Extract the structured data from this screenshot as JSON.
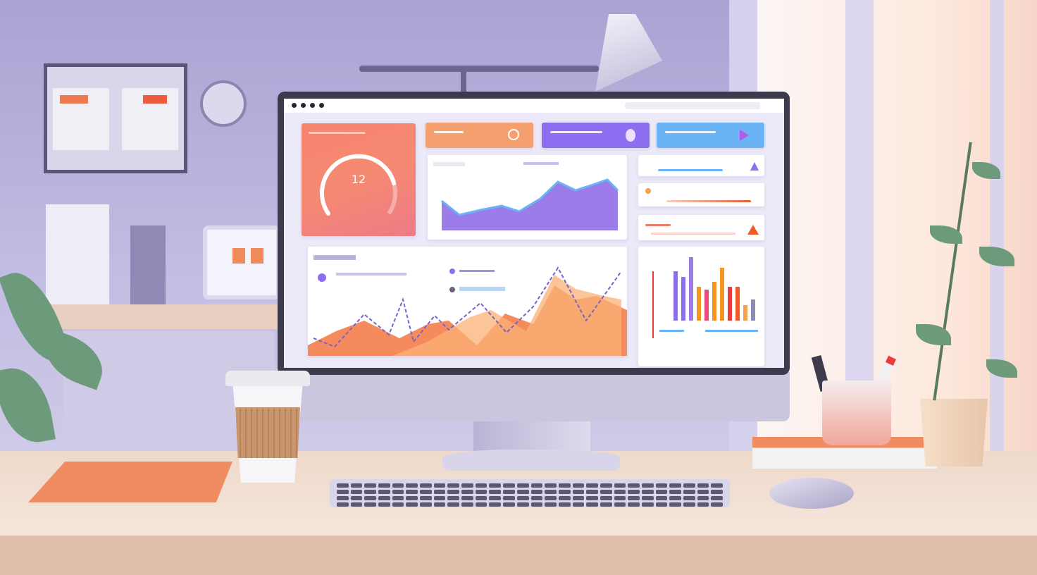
{
  "dashboard": {
    "gauge": {
      "value": "12",
      "progress": 0.8
    },
    "colors": {
      "accent_orange": "#f7a06f",
      "accent_purple": "#8d6ef0",
      "accent_blue": "#6ab3f5",
      "gauge_start": "#f5787f",
      "gauge_end": "#f7956e"
    },
    "kpi_cards": [
      {
        "color": "#f7a06f",
        "icon": "pie-icon"
      },
      {
        "color": "#8d6ef0",
        "icon": "pie-icon"
      },
      {
        "color": "#6ab3f5",
        "icon": "play-icon"
      }
    ]
  }
}
